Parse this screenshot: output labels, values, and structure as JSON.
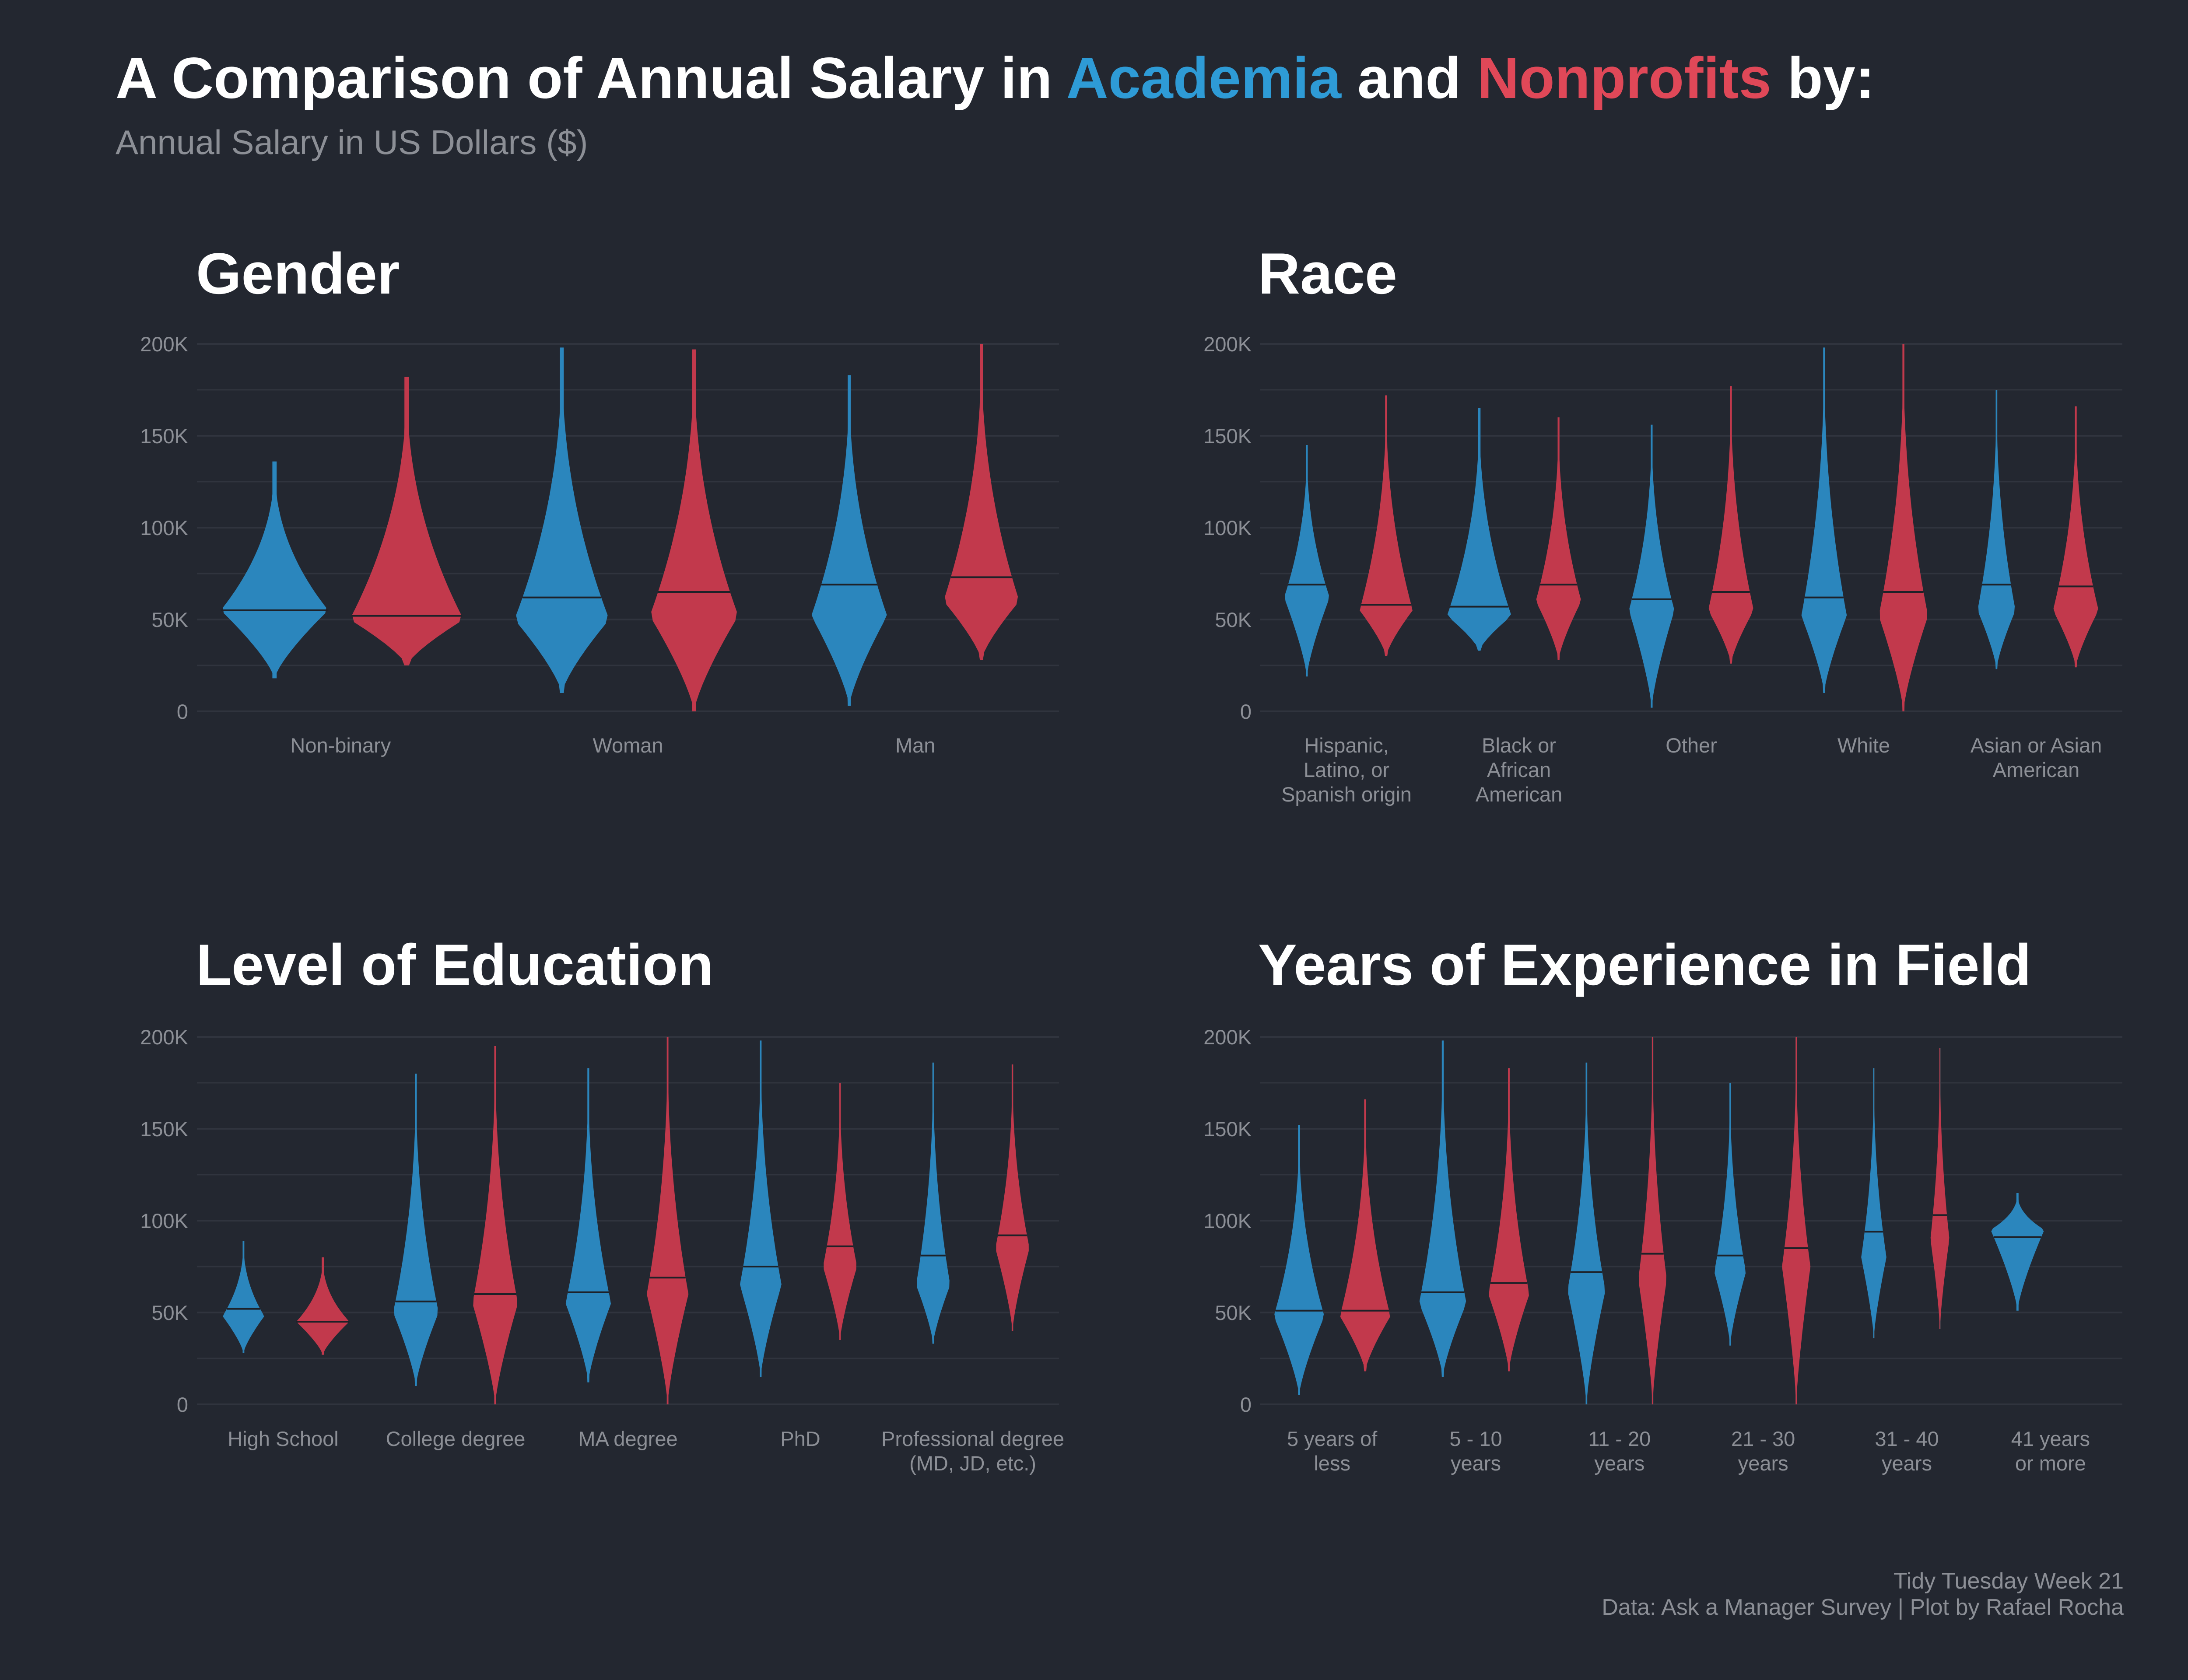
{
  "title": {
    "prefix": "A Comparison of Annual Salary in ",
    "academia": "Academia",
    "middle": " and ",
    "nonprofits": "Nonprofits",
    "suffix": " by:"
  },
  "subtitle": "Annual Salary in US Dollars ($)",
  "colors": {
    "background": "#232730",
    "academia": "#2b86bd",
    "nonprofits": "#c2394c",
    "academia_text": "#2e9bd6",
    "nonprofits_text": "#e04858",
    "grid": "#30343e",
    "tick_text": "#8c8f96"
  },
  "footer": {
    "line1": "Tidy Tuesday Week 21",
    "line2": "Data: Ask a Manager Survey | Plot by Rafael Rocha"
  },
  "chart_data": [
    {
      "type": "violin",
      "title": "Gender",
      "ylim": [
        0,
        200000
      ],
      "yticks": [
        0,
        50000,
        100000,
        150000,
        200000
      ],
      "ytick_labels": [
        "0",
        "50K",
        "100K",
        "150K",
        "200K"
      ],
      "categories": [
        [
          "Non-binary"
        ],
        [
          "Woman"
        ],
        [
          "Man"
        ]
      ],
      "series": [
        {
          "name": "Academia",
          "min": [
            18000,
            10000,
            3000
          ],
          "max": [
            136000,
            198000,
            183000
          ],
          "median": [
            55000,
            62000,
            69000
          ],
          "width": [
            0.85,
            0.75,
            0.6
          ],
          "mode": [
            55000,
            50000,
            52000
          ]
        },
        {
          "name": "Nonprofits",
          "min": [
            25000,
            0,
            28000
          ],
          "max": [
            182000,
            197000,
            200000
          ],
          "median": [
            52000,
            65000,
            73000
          ],
          "width": [
            0.9,
            0.7,
            0.6
          ],
          "mode": [
            50000,
            52000,
            60000
          ]
        }
      ]
    },
    {
      "type": "violin",
      "title": "Race",
      "ylim": [
        0,
        200000
      ],
      "yticks": [
        0,
        50000,
        100000,
        150000,
        200000
      ],
      "ytick_labels": [
        "0",
        "50K",
        "100K",
        "150K",
        "200K"
      ],
      "categories": [
        [
          "Hispanic,",
          "Latino, or",
          "Spanish origin"
        ],
        [
          "Black or",
          "African",
          "American"
        ],
        [
          "Other"
        ],
        [
          "White"
        ],
        [
          "Asian or Asian",
          "American"
        ]
      ],
      "series": [
        {
          "name": "Academia",
          "min": [
            19000,
            33000,
            2000,
            10000,
            23000
          ],
          "max": [
            145000,
            165000,
            156000,
            198000,
            175000
          ],
          "median": [
            69000,
            57000,
            61000,
            62000,
            69000
          ],
          "width": [
            0.6,
            0.85,
            0.6,
            0.6,
            0.5
          ],
          "mode": [
            62000,
            52000,
            55000,
            52000,
            55000
          ]
        },
        {
          "name": "Nonprofits",
          "min": [
            30000,
            28000,
            26000,
            0,
            24000
          ],
          "max": [
            172000,
            160000,
            177000,
            200000,
            166000
          ],
          "median": [
            58000,
            69000,
            65000,
            65000,
            68000
          ],
          "width": [
            0.7,
            0.6,
            0.6,
            0.65,
            0.6
          ],
          "mode": [
            55000,
            60000,
            55000,
            52000,
            55000
          ]
        }
      ]
    },
    {
      "type": "violin",
      "title": "Level of Education",
      "ylim": [
        0,
        200000
      ],
      "yticks": [
        0,
        50000,
        100000,
        150000,
        200000
      ],
      "ytick_labels": [
        "0",
        "50K",
        "100K",
        "150K",
        "200K"
      ],
      "categories": [
        [
          "High School"
        ],
        [
          "College degree"
        ],
        [
          "MA degree"
        ],
        [
          "PhD"
        ],
        [
          "Professional degree",
          "(MD, JD, etc.)"
        ]
      ],
      "series": [
        {
          "name": "Academia",
          "min": [
            28000,
            10000,
            12000,
            15000,
            33000
          ],
          "max": [
            89000,
            180000,
            183000,
            198000,
            186000
          ],
          "median": [
            52000,
            56000,
            61000,
            75000,
            81000
          ],
          "width": [
            0.55,
            0.6,
            0.6,
            0.55,
            0.45
          ],
          "mode": [
            48000,
            50000,
            55000,
            65000,
            65000
          ]
        },
        {
          "name": "Nonprofits",
          "min": [
            27000,
            0,
            0,
            35000,
            40000
          ],
          "max": [
            80000,
            195000,
            200000,
            175000,
            185000
          ],
          "median": [
            45000,
            60000,
            69000,
            86000,
            92000
          ],
          "width": [
            0.7,
            0.6,
            0.55,
            0.45,
            0.45
          ],
          "mode": [
            45000,
            55000,
            60000,
            75000,
            85000
          ]
        }
      ]
    },
    {
      "type": "violin",
      "title": "Years of Experience in Field",
      "ylim": [
        0,
        200000
      ],
      "yticks": [
        0,
        50000,
        100000,
        150000,
        200000
      ],
      "ytick_labels": [
        "0",
        "50K",
        "100K",
        "150K",
        "200K"
      ],
      "categories": [
        [
          "5 years of",
          "less"
        ],
        [
          "5 - 10",
          "years"
        ],
        [
          "11 - 20",
          "years"
        ],
        [
          "21 - 30",
          "years"
        ],
        [
          "31 - 40",
          "years"
        ],
        [
          "41 years",
          "or more"
        ]
      ],
      "series": [
        {
          "name": "Academia",
          "min": [
            5000,
            15000,
            0,
            32000,
            36000,
            51000
          ],
          "max": [
            152000,
            198000,
            186000,
            175000,
            183000,
            115000
          ],
          "median": [
            51000,
            61000,
            72000,
            81000,
            94000,
            91000
          ],
          "width": [
            0.8,
            0.75,
            0.6,
            0.5,
            0.4,
            0.85
          ],
          "mode": [
            48000,
            55000,
            62000,
            72000,
            80000,
            95000
          ]
        },
        {
          "name": "Nonprofits",
          "min": [
            18000,
            18000,
            0,
            0,
            41000
          ],
          "max": [
            166000,
            183000,
            200000,
            200000,
            194000
          ],
          "median": [
            51000,
            66000,
            82000,
            85000,
            103000
          ],
          "width": [
            0.8,
            0.65,
            0.45,
            0.45,
            0.3
          ],
          "mode": [
            48000,
            60000,
            68000,
            75000,
            90000
          ]
        }
      ]
    }
  ]
}
